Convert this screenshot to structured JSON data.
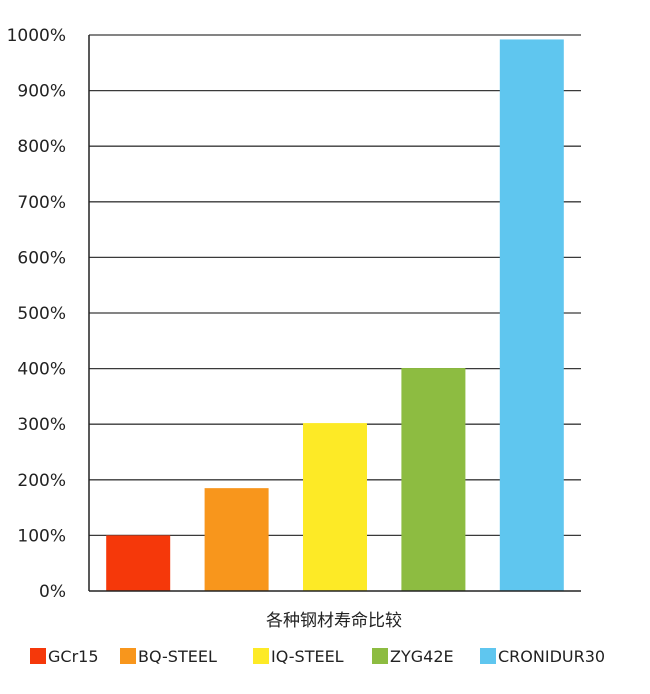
{
  "chart_data": {
    "type": "bar",
    "categories": [
      "GCr15",
      "BQ-STEEL",
      "IQ-STEEL",
      "ZYG42E",
      "CRONIDUR30"
    ],
    "values": [
      100,
      185,
      302,
      401,
      992
    ],
    "value_unit": "%",
    "title": "",
    "xlabel": "各种钢材寿命比较",
    "ylabel": "",
    "ylim": [
      0,
      1000
    ],
    "yticks": [
      0,
      100,
      200,
      300,
      400,
      500,
      600,
      700,
      800,
      900,
      1000
    ],
    "ytick_labels": [
      "0%",
      "100%",
      "200%",
      "300%",
      "400%",
      "500%",
      "600%",
      "700%",
      "800%",
      "900%",
      "1000%"
    ],
    "colors": [
      "#f5380a",
      "#f8961c",
      "#fdea26",
      "#8dbc41",
      "#5fc6ef"
    ],
    "grid": true,
    "legend": {
      "position": "bottom",
      "entries": [
        "GCr15",
        "BQ-STEEL",
        "IQ-STEEL",
        "ZYG42E",
        "CRONIDUR30"
      ]
    }
  }
}
